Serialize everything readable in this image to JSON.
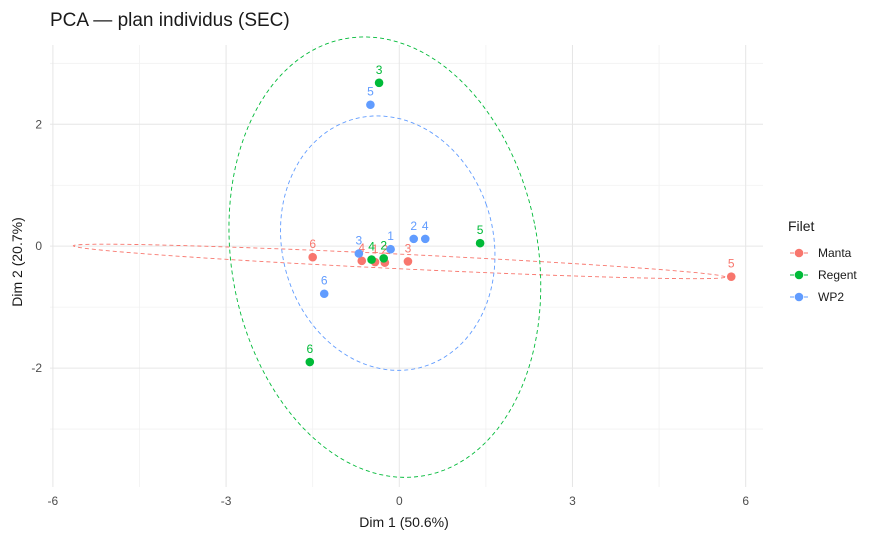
{
  "chart_data": {
    "type": "scatter",
    "title": "PCA — plan individus (SEC)",
    "xlabel": "Dim 1 (50.6%)",
    "ylabel": "Dim 2 (20.7%)",
    "xlim": [
      -6.05,
      6.3
    ],
    "ylim": [
      -3.95,
      3.3
    ],
    "xticks": [
      -6,
      -3,
      0,
      3,
      6
    ],
    "yticks": [
      -2,
      0,
      2
    ],
    "grid": true,
    "legend": {
      "title": "Filet",
      "position": "right"
    },
    "series": [
      {
        "name": "Manta",
        "color": "#F8766D",
        "points": [
          {
            "label": "6",
            "x": -1.5,
            "y": -0.18
          },
          {
            "label": "4",
            "x": -0.65,
            "y": -0.24
          },
          {
            "label": "1",
            "x": -0.42,
            "y": -0.26
          },
          {
            "label": "2",
            "x": -0.25,
            "y": -0.27
          },
          {
            "label": "3",
            "x": 0.15,
            "y": -0.25
          },
          {
            "label": "5",
            "x": 5.75,
            "y": -0.5
          }
        ],
        "ellipse": {
          "cx": 0.0,
          "cy": -0.25,
          "rx": 5.65,
          "ry": 0.12,
          "angle_deg": -2.6
        }
      },
      {
        "name": "Regent",
        "color": "#00BA38",
        "points": [
          {
            "label": "3",
            "x": -0.35,
            "y": 2.68
          },
          {
            "label": "5",
            "x": 1.4,
            "y": 0.05
          },
          {
            "label": "4",
            "x": -0.48,
            "y": -0.22
          },
          {
            "label": "2",
            "x": -0.27,
            "y": -0.2
          },
          {
            "label": "6",
            "x": -1.55,
            "y": -1.9
          }
        ],
        "ellipse": {
          "cx": -0.25,
          "cy": -0.18,
          "rx": 2.65,
          "ry": 3.65,
          "angle_deg": 12
        }
      },
      {
        "name": "WP2",
        "color": "#619CFF",
        "points": [
          {
            "label": "5",
            "x": -0.5,
            "y": 2.32
          },
          {
            "label": "3",
            "x": -0.7,
            "y": -0.12
          },
          {
            "label": "1",
            "x": -0.15,
            "y": -0.05
          },
          {
            "label": "2",
            "x": 0.25,
            "y": 0.12
          },
          {
            "label": "4",
            "x": 0.45,
            "y": 0.12
          },
          {
            "label": "6",
            "x": -1.3,
            "y": -0.78
          }
        ],
        "ellipse": {
          "cx": -0.2,
          "cy": 0.05,
          "rx": 1.82,
          "ry": 2.12,
          "angle_deg": 20
        }
      }
    ]
  }
}
